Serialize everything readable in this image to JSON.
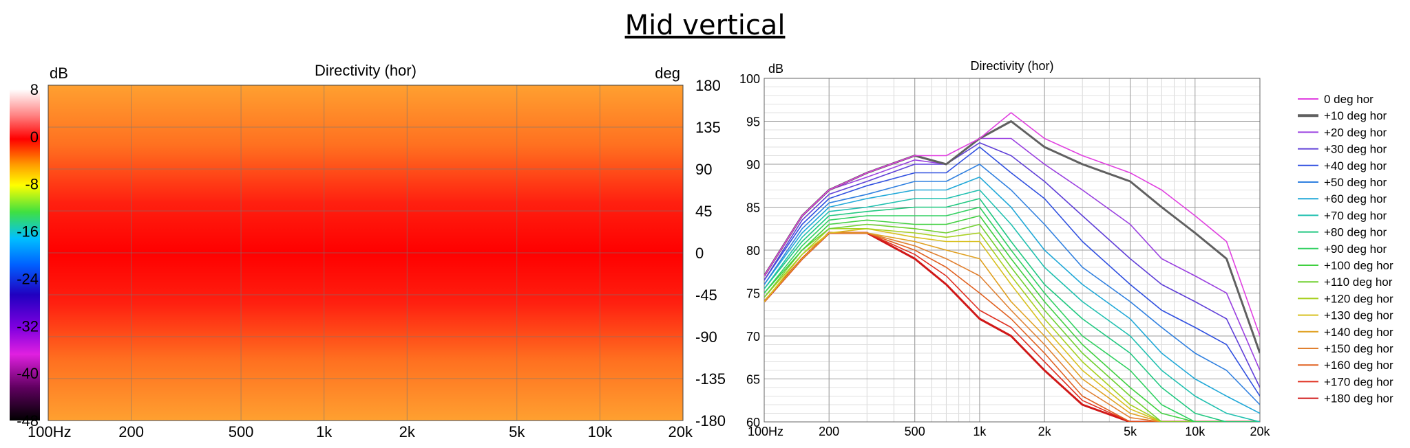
{
  "page_title": "Mid vertical",
  "chart_data": [
    {
      "type": "heatmap",
      "title": "Directivity (hor)",
      "colorbar_unit": "dB",
      "y_unit": "deg",
      "colorbar_ticks": [
        "8",
        "0",
        "-8",
        "-16",
        "-24",
        "-32",
        "-40",
        "-48"
      ],
      "colorbar_range": [
        -48,
        8
      ],
      "x_scale": "log",
      "xlim": [
        100,
        20000
      ],
      "x_ticks": [
        {
          "v": 100,
          "label": "100Hz"
        },
        {
          "v": 200,
          "label": "200"
        },
        {
          "v": 500,
          "label": "500"
        },
        {
          "v": 1000,
          "label": "1k"
        },
        {
          "v": 2000,
          "label": "2k"
        },
        {
          "v": 5000,
          "label": "5k"
        },
        {
          "v": 10000,
          "label": "10k"
        },
        {
          "v": 20000,
          "label": "20k"
        }
      ],
      "ylim": [
        -180,
        180
      ],
      "y_ticks": [
        "180",
        "135",
        "90",
        "45",
        "0",
        "-45",
        "-90",
        "-135",
        "-180"
      ],
      "grid": true
    },
    {
      "type": "line",
      "title": "Directivity (hor)",
      "ylabel": "dB",
      "x_scale": "log",
      "xlim": [
        100,
        20000
      ],
      "ylim": [
        60,
        100
      ],
      "x_ticks": [
        {
          "v": 100,
          "label": "100Hz"
        },
        {
          "v": 200,
          "label": "200"
        },
        {
          "v": 500,
          "label": "500"
        },
        {
          "v": 1000,
          "label": "1k"
        },
        {
          "v": 2000,
          "label": "2k"
        },
        {
          "v": 5000,
          "label": "5k"
        },
        {
          "v": 10000,
          "label": "10k"
        },
        {
          "v": 20000,
          "label": "20k"
        }
      ],
      "y_ticks": [
        "100",
        "95",
        "90",
        "85",
        "80",
        "75",
        "70",
        "65",
        "60"
      ],
      "grid": true,
      "legend_position": "right",
      "x": [
        100,
        150,
        200,
        300,
        500,
        700,
        1000,
        1400,
        2000,
        3000,
        5000,
        7000,
        10000,
        14000,
        20000
      ],
      "series": [
        {
          "name": "0 deg hor",
          "color": "#e040e0",
          "values": [
            77,
            84,
            87,
            89,
            91,
            91,
            93,
            96,
            93,
            91,
            89,
            87,
            84,
            81,
            70
          ]
        },
        {
          "name": "+10 deg hor",
          "color": "#606060",
          "values": [
            77,
            84,
            87,
            89,
            91,
            90,
            93,
            95,
            92,
            90,
            88,
            85,
            82,
            79,
            68
          ]
        },
        {
          "name": "+20 deg hor",
          "color": "#9a40e0",
          "values": [
            77,
            84,
            87,
            88.5,
            90.5,
            90,
            93,
            93,
            90,
            87,
            83,
            79,
            77,
            75,
            66
          ]
        },
        {
          "name": "+30 deg hor",
          "color": "#6040d8",
          "values": [
            76.5,
            83.5,
            86.5,
            88,
            90,
            90,
            92.5,
            91,
            88,
            84,
            79,
            76,
            74,
            72,
            64
          ]
        },
        {
          "name": "+40 deg hor",
          "color": "#3050e0",
          "values": [
            76.5,
            83,
            86,
            87.5,
            89,
            89,
            92,
            89,
            86,
            81,
            76,
            73,
            71,
            69,
            63
          ]
        },
        {
          "name": "+50 deg hor",
          "color": "#3080e0",
          "values": [
            76,
            82.5,
            85.5,
            86.5,
            88,
            88,
            90,
            87,
            83,
            78,
            74,
            71,
            68,
            66,
            62
          ]
        },
        {
          "name": "+60 deg hor",
          "color": "#20a8d8",
          "values": [
            76,
            82,
            85,
            86,
            87,
            87,
            88.5,
            85,
            80,
            76,
            72,
            68,
            65,
            63,
            61
          ]
        },
        {
          "name": "+70 deg hor",
          "color": "#20c0b0",
          "values": [
            75.5,
            81.5,
            84.5,
            85,
            86,
            86,
            87,
            83,
            78,
            74,
            70,
            66,
            63,
            61,
            60
          ]
        },
        {
          "name": "+80 deg hor",
          "color": "#20c880",
          "values": [
            75.5,
            81,
            84,
            84.5,
            85,
            85,
            86,
            81,
            76,
            72,
            68,
            64,
            61,
            60,
            60
          ]
        },
        {
          "name": "+90 deg hor",
          "color": "#30d060",
          "values": [
            75,
            80.5,
            83.5,
            84,
            84,
            84,
            85,
            80,
            75,
            70,
            66,
            62,
            60,
            60,
            60
          ]
        },
        {
          "name": "+100 deg hor",
          "color": "#40d040",
          "values": [
            75,
            80,
            83,
            83.5,
            83,
            83,
            84,
            79,
            74,
            69,
            64,
            61,
            60,
            60,
            60
          ]
        },
        {
          "name": "+110 deg hor",
          "color": "#70d030",
          "values": [
            74.5,
            80,
            82.5,
            83,
            82.5,
            82,
            83,
            78,
            73,
            68,
            63,
            60,
            60,
            60,
            60
          ]
        },
        {
          "name": "+120 deg hor",
          "color": "#a8d020",
          "values": [
            74.5,
            79.5,
            82.5,
            82.5,
            82,
            81.5,
            82,
            77,
            72,
            67,
            62,
            60,
            60,
            60,
            60
          ]
        },
        {
          "name": "+130 deg hor",
          "color": "#d8c020",
          "values": [
            74,
            79.5,
            82,
            82.5,
            81.5,
            81,
            81,
            76,
            71,
            66,
            61.5,
            60,
            60,
            60,
            60
          ]
        },
        {
          "name": "+140 deg hor",
          "color": "#e0a020",
          "values": [
            74,
            79,
            82,
            82,
            81,
            80,
            79,
            74,
            70,
            65,
            61,
            60,
            60,
            60,
            60
          ]
        },
        {
          "name": "+150 deg hor",
          "color": "#e08030",
          "values": [
            74,
            79,
            82,
            82,
            80.5,
            79,
            77,
            73,
            69,
            64,
            60.5,
            60,
            60,
            60,
            60
          ]
        },
        {
          "name": "+160 deg hor",
          "color": "#e06020",
          "values": [
            74,
            79,
            82,
            82,
            80,
            78,
            75,
            72,
            68,
            63,
            60,
            60,
            60,
            60,
            60
          ]
        },
        {
          "name": "+170 deg hor",
          "color": "#e03020",
          "values": [
            74,
            79,
            82,
            82,
            79.5,
            77,
            73,
            71,
            67,
            62.5,
            60,
            60,
            60,
            60,
            60
          ]
        },
        {
          "name": "+180 deg hor",
          "color": "#d01818",
          "values": [
            74,
            79,
            82,
            82,
            79,
            76,
            72,
            70,
            66,
            62,
            60,
            60,
            60,
            60,
            60
          ]
        }
      ]
    }
  ]
}
